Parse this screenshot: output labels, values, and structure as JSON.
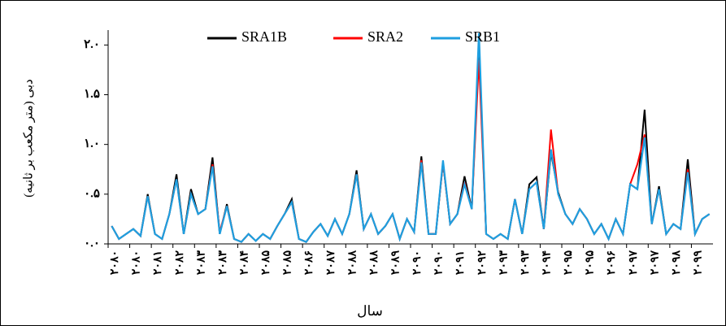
{
  "chart_data": {
    "type": "line",
    "y_label": "دبی (متر مکعب بر ثانیه)",
    "x_label": "سال",
    "categories": [
      "۲۰۸۰",
      null,
      null,
      "۲۰۸۰",
      null,
      null,
      "۲۰۸۱",
      null,
      null,
      "۲۰۸۲",
      null,
      null,
      "۲۰۸۳",
      null,
      null,
      "۲۰۸۳",
      null,
      null,
      "۲۰۸۴",
      null,
      null,
      "۲۰۸۵",
      null,
      null,
      "۲۰۸۵",
      null,
      null,
      "۲۰۸۶",
      null,
      null,
      "۲۰۸۷",
      null,
      null,
      "۲۰۸۸",
      null,
      null,
      "۲۰۸۸",
      null,
      null,
      "۲۰۸۹",
      null,
      null,
      "۲۰۹۰",
      null,
      null,
      "۲۰۹۰",
      null,
      null,
      "۲۰۹۱",
      null,
      null,
      "۲۰۹۲",
      null,
      null,
      "۲۰۹۳",
      null,
      null,
      "۲۰۹۳",
      null,
      null,
      "۲۰۹۴",
      null,
      null,
      "۲۰۹۵",
      null,
      null,
      "۲۰۹۵",
      null,
      null,
      "۲۰۹۶",
      null,
      null,
      "۲۰۹۷",
      null,
      null,
      "۲۰۹۷",
      null,
      null,
      "۲۰۹۸",
      null,
      null,
      "۲۰۹۹",
      null,
      null
    ],
    "series": [
      {
        "name": "SRA1B",
        "color": "#000000",
        "values": [
          0.18,
          0.05,
          0.1,
          0.15,
          0.08,
          0.5,
          0.1,
          0.05,
          0.3,
          0.7,
          0.1,
          0.55,
          0.3,
          0.35,
          0.87,
          0.1,
          0.4,
          0.05,
          0.02,
          0.1,
          0.03,
          0.1,
          0.05,
          0.18,
          0.3,
          0.45,
          0.05,
          0.02,
          0.12,
          0.2,
          0.08,
          0.25,
          0.1,
          0.3,
          0.74,
          0.15,
          0.3,
          0.1,
          0.18,
          0.3,
          0.05,
          0.25,
          0.12,
          0.88,
          0.1,
          0.1,
          0.82,
          0.2,
          0.3,
          0.68,
          0.35,
          2.0,
          0.1,
          0.05,
          0.1,
          0.05,
          0.45,
          0.1,
          0.6,
          0.67,
          0.15,
          0.92,
          0.52,
          0.3,
          0.2,
          0.35,
          0.25,
          0.1,
          0.2,
          0.05,
          0.25,
          0.1,
          0.6,
          0.55,
          1.35,
          0.2,
          0.58,
          0.1,
          0.2,
          0.15,
          0.85,
          0.1,
          0.25,
          0.3
        ]
      },
      {
        "name": "SRA2",
        "color": "#ff0000",
        "values": [
          0.18,
          0.05,
          0.1,
          0.15,
          0.08,
          0.48,
          0.1,
          0.05,
          0.3,
          0.65,
          0.1,
          0.5,
          0.3,
          0.35,
          0.8,
          0.12,
          0.38,
          0.05,
          0.02,
          0.1,
          0.03,
          0.1,
          0.05,
          0.18,
          0.3,
          0.42,
          0.05,
          0.02,
          0.12,
          0.2,
          0.08,
          0.25,
          0.1,
          0.3,
          0.7,
          0.15,
          0.3,
          0.1,
          0.18,
          0.3,
          0.05,
          0.25,
          0.12,
          0.84,
          0.1,
          0.1,
          0.82,
          0.2,
          0.3,
          0.62,
          0.35,
          1.85,
          0.1,
          0.05,
          0.1,
          0.05,
          0.45,
          0.1,
          0.55,
          0.62,
          0.15,
          1.15,
          0.5,
          0.3,
          0.2,
          0.35,
          0.25,
          0.1,
          0.2,
          0.05,
          0.25,
          0.1,
          0.6,
          0.8,
          1.1,
          0.2,
          0.55,
          0.1,
          0.2,
          0.15,
          0.75,
          0.1,
          0.25,
          0.3
        ]
      },
      {
        "name": "SRB1",
        "color": "#1e9fe0",
        "values": [
          0.18,
          0.05,
          0.1,
          0.15,
          0.08,
          0.48,
          0.1,
          0.05,
          0.3,
          0.65,
          0.1,
          0.5,
          0.3,
          0.35,
          0.78,
          0.1,
          0.38,
          0.05,
          0.02,
          0.1,
          0.03,
          0.1,
          0.05,
          0.18,
          0.3,
          0.42,
          0.05,
          0.02,
          0.12,
          0.2,
          0.08,
          0.25,
          0.1,
          0.3,
          0.7,
          0.15,
          0.3,
          0.1,
          0.18,
          0.3,
          0.05,
          0.25,
          0.12,
          0.82,
          0.1,
          0.1,
          0.84,
          0.2,
          0.3,
          0.6,
          0.35,
          2.12,
          0.1,
          0.05,
          0.1,
          0.05,
          0.45,
          0.1,
          0.55,
          0.62,
          0.15,
          0.95,
          0.5,
          0.3,
          0.2,
          0.35,
          0.25,
          0.1,
          0.2,
          0.05,
          0.25,
          0.1,
          0.6,
          0.55,
          1.07,
          0.2,
          0.55,
          0.1,
          0.2,
          0.15,
          0.72,
          0.1,
          0.25,
          0.3
        ]
      }
    ],
    "ylim": [
      0,
      2.15
    ],
    "yticks": [
      {
        "value": 0,
        "label": "۰.۰"
      },
      {
        "value": 0.5,
        "label": "۰.۵"
      },
      {
        "value": 1,
        "label": "۱.۰"
      },
      {
        "value": 1.5,
        "label": "۱.۵"
      },
      {
        "value": 2,
        "label": "۲.۰"
      }
    ],
    "legend": "top"
  }
}
